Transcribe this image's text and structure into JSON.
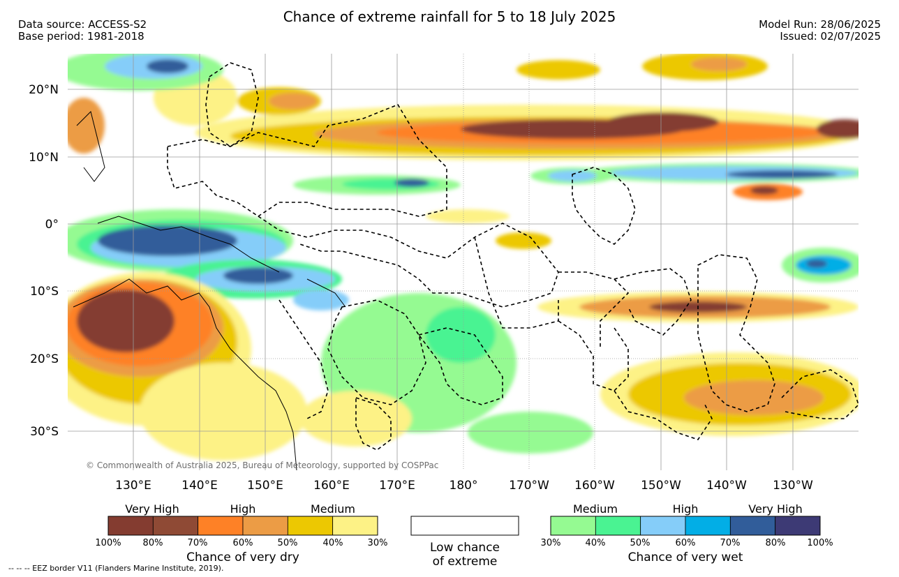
{
  "header": {
    "title": "Chance of extreme rainfall for 5 to 18 July 2025",
    "data_source": "Data source: ACCESS-S2",
    "base_period": "Base period: 1981-2018",
    "model_run": "Model Run: 28/06/2025",
    "issued": "Issued: 02/07/2025"
  },
  "map": {
    "lat_labels": [
      "20°N",
      "10°N",
      "0°",
      "10°S",
      "20°S",
      "30°S"
    ],
    "lon_labels": [
      "130°E",
      "140°E",
      "150°E",
      "160°E",
      "170°E",
      "180°",
      "170°W",
      "160°W",
      "150°W",
      "140°W",
      "130°W"
    ],
    "copyright": "© Commonwealth of Australia 2025, Bureau of Meteorology, supported by COSPPac",
    "land_color": "#ffffff",
    "border_style": "dashed"
  },
  "legend_dry": {
    "categories": [
      "Very High",
      "High",
      "Medium"
    ],
    "ticks": [
      "100%",
      "80%",
      "70%",
      "60%",
      "50%",
      "40%",
      "30%"
    ],
    "colors": [
      "#843c30",
      "#8f4a35",
      "#fe8126",
      "#ec9c45",
      "#ecc802",
      "#fdf286"
    ],
    "title": "Chance of very dry"
  },
  "legend_low": {
    "line1": "Low chance",
    "line2": "of extreme"
  },
  "legend_wet": {
    "categories": [
      "Medium",
      "High",
      "Very High"
    ],
    "ticks": [
      "30%",
      "40%",
      "50%",
      "60%",
      "70%",
      "80%",
      "100%"
    ],
    "colors": [
      "#95fa92",
      "#4af392",
      "#85cdf9",
      "#02aee6",
      "#315d9a",
      "#3d3a75"
    ],
    "title": "Chance of very wet"
  },
  "footer": {
    "eez_note": "-- -- -- EEZ border V11 (Flanders Marine Institute, 2019)."
  }
}
